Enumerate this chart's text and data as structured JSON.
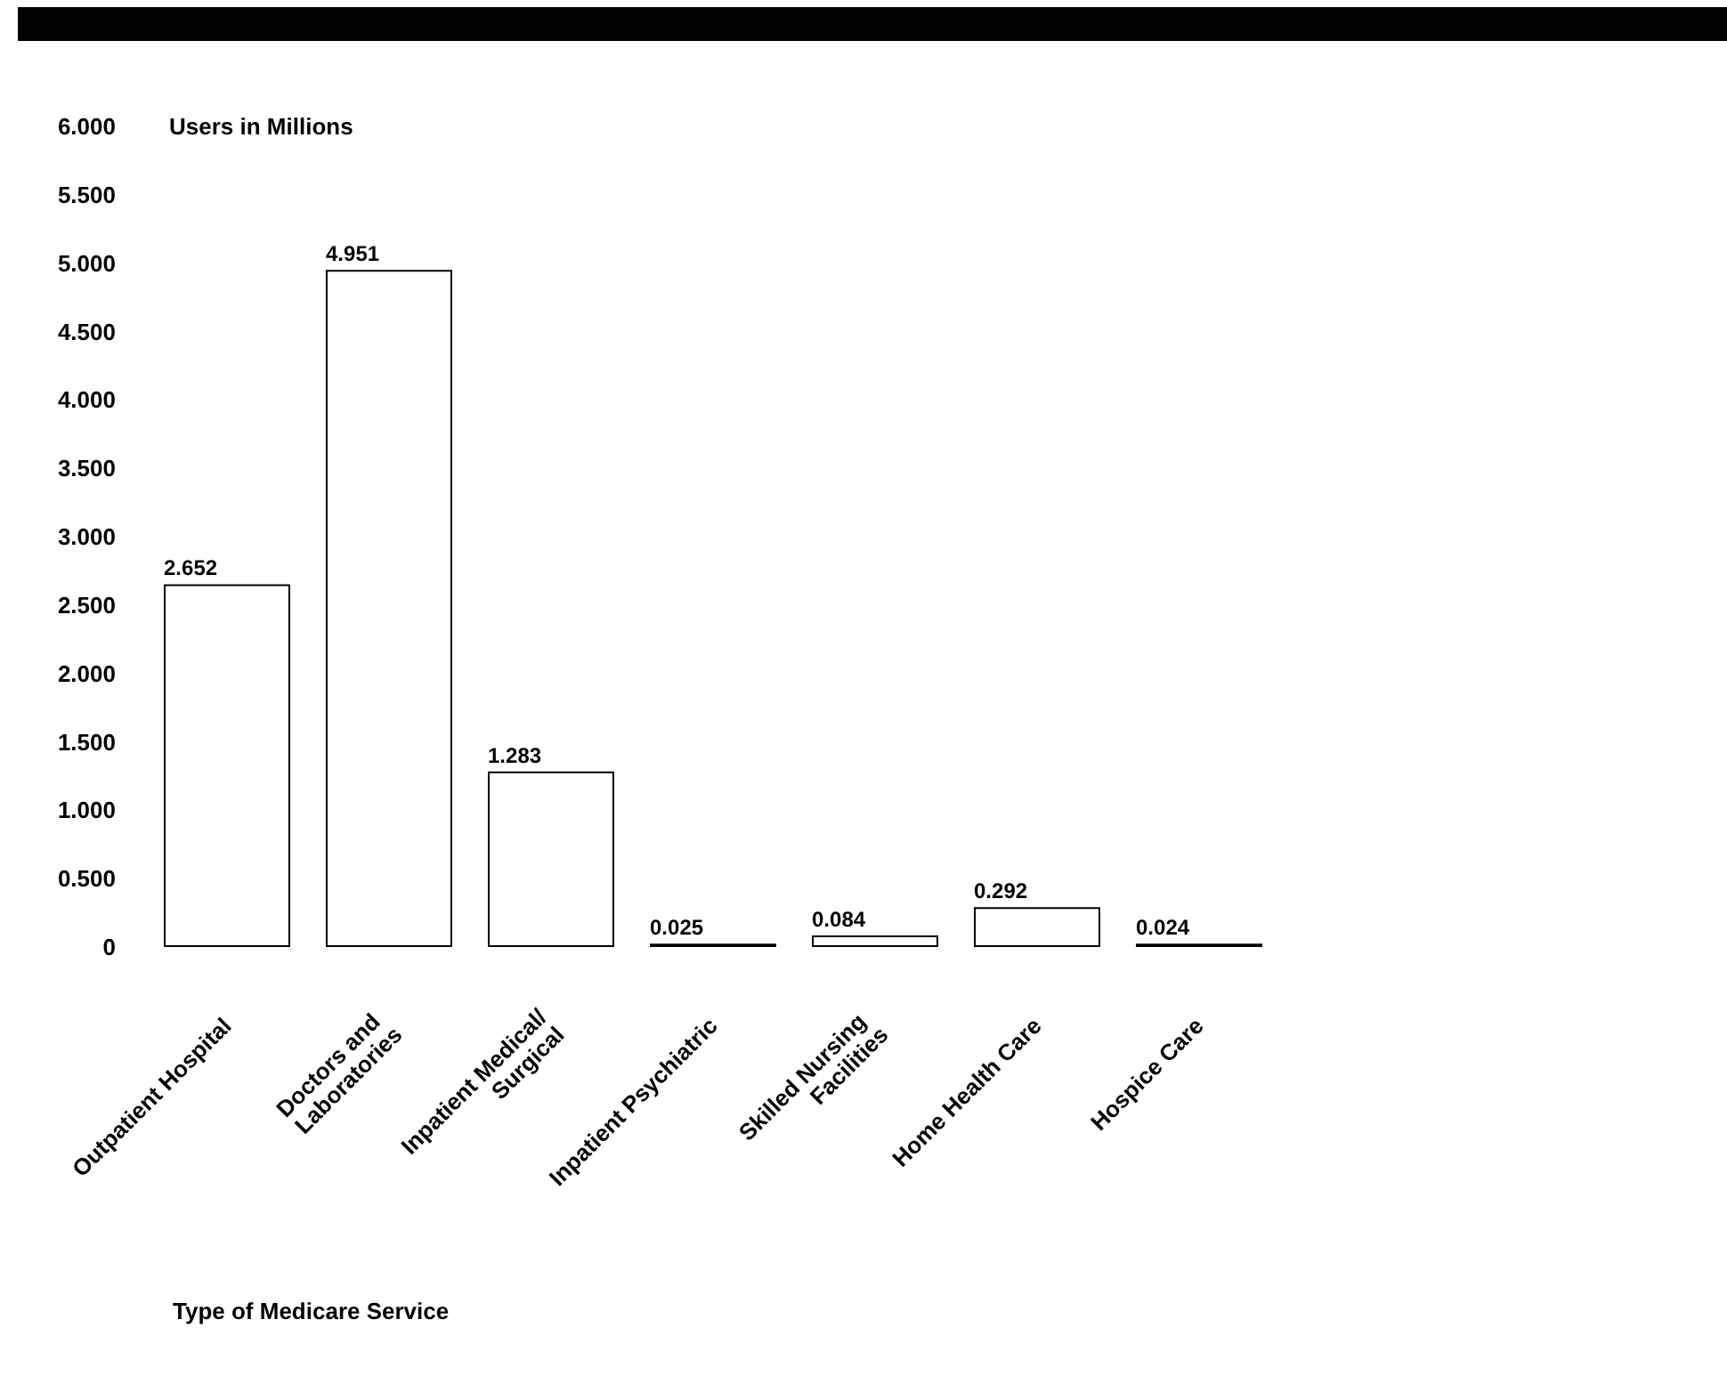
{
  "chart_data": {
    "type": "bar",
    "ylabel": "Users in Millions",
    "xlabel": "Type of Medicare Service",
    "categories": [
      "Outpatient Hospital",
      "Doctors and Laboratories",
      "Inpatient Medical/Surgical",
      "Inpatient Psychiatric",
      "Skilled Nursing Facilities",
      "Home Health Care",
      "Hospice Care"
    ],
    "values": [
      2.652,
      4.951,
      1.283,
      0.025,
      0.084,
      0.292,
      0.024
    ],
    "color": "#ffffff",
    "ylim": [
      0,
      6
    ],
    "yticks": [
      0,
      {
        "value": 0.5,
        "label": "0.500"
      },
      {
        "value": 1,
        "label": "1.000"
      },
      {
        "value": 1.5,
        "label": "1.500"
      },
      {
        "value": 2,
        "label": "2.000"
      },
      {
        "value": 2.5,
        "label": "2.500"
      },
      {
        "value": 3,
        "label": "3.000"
      },
      {
        "value": 3.5,
        "label": "3.500"
      },
      {
        "value": 4,
        "label": "4.000"
      },
      {
        "value": 4.5,
        "label": "4.500"
      },
      {
        "value": 5,
        "label": "5.000"
      },
      {
        "value": 5.5,
        "label": "5.500"
      },
      {
        "value": 6,
        "label": "6.000"
      }
    ],
    "data_labels": true
  }
}
